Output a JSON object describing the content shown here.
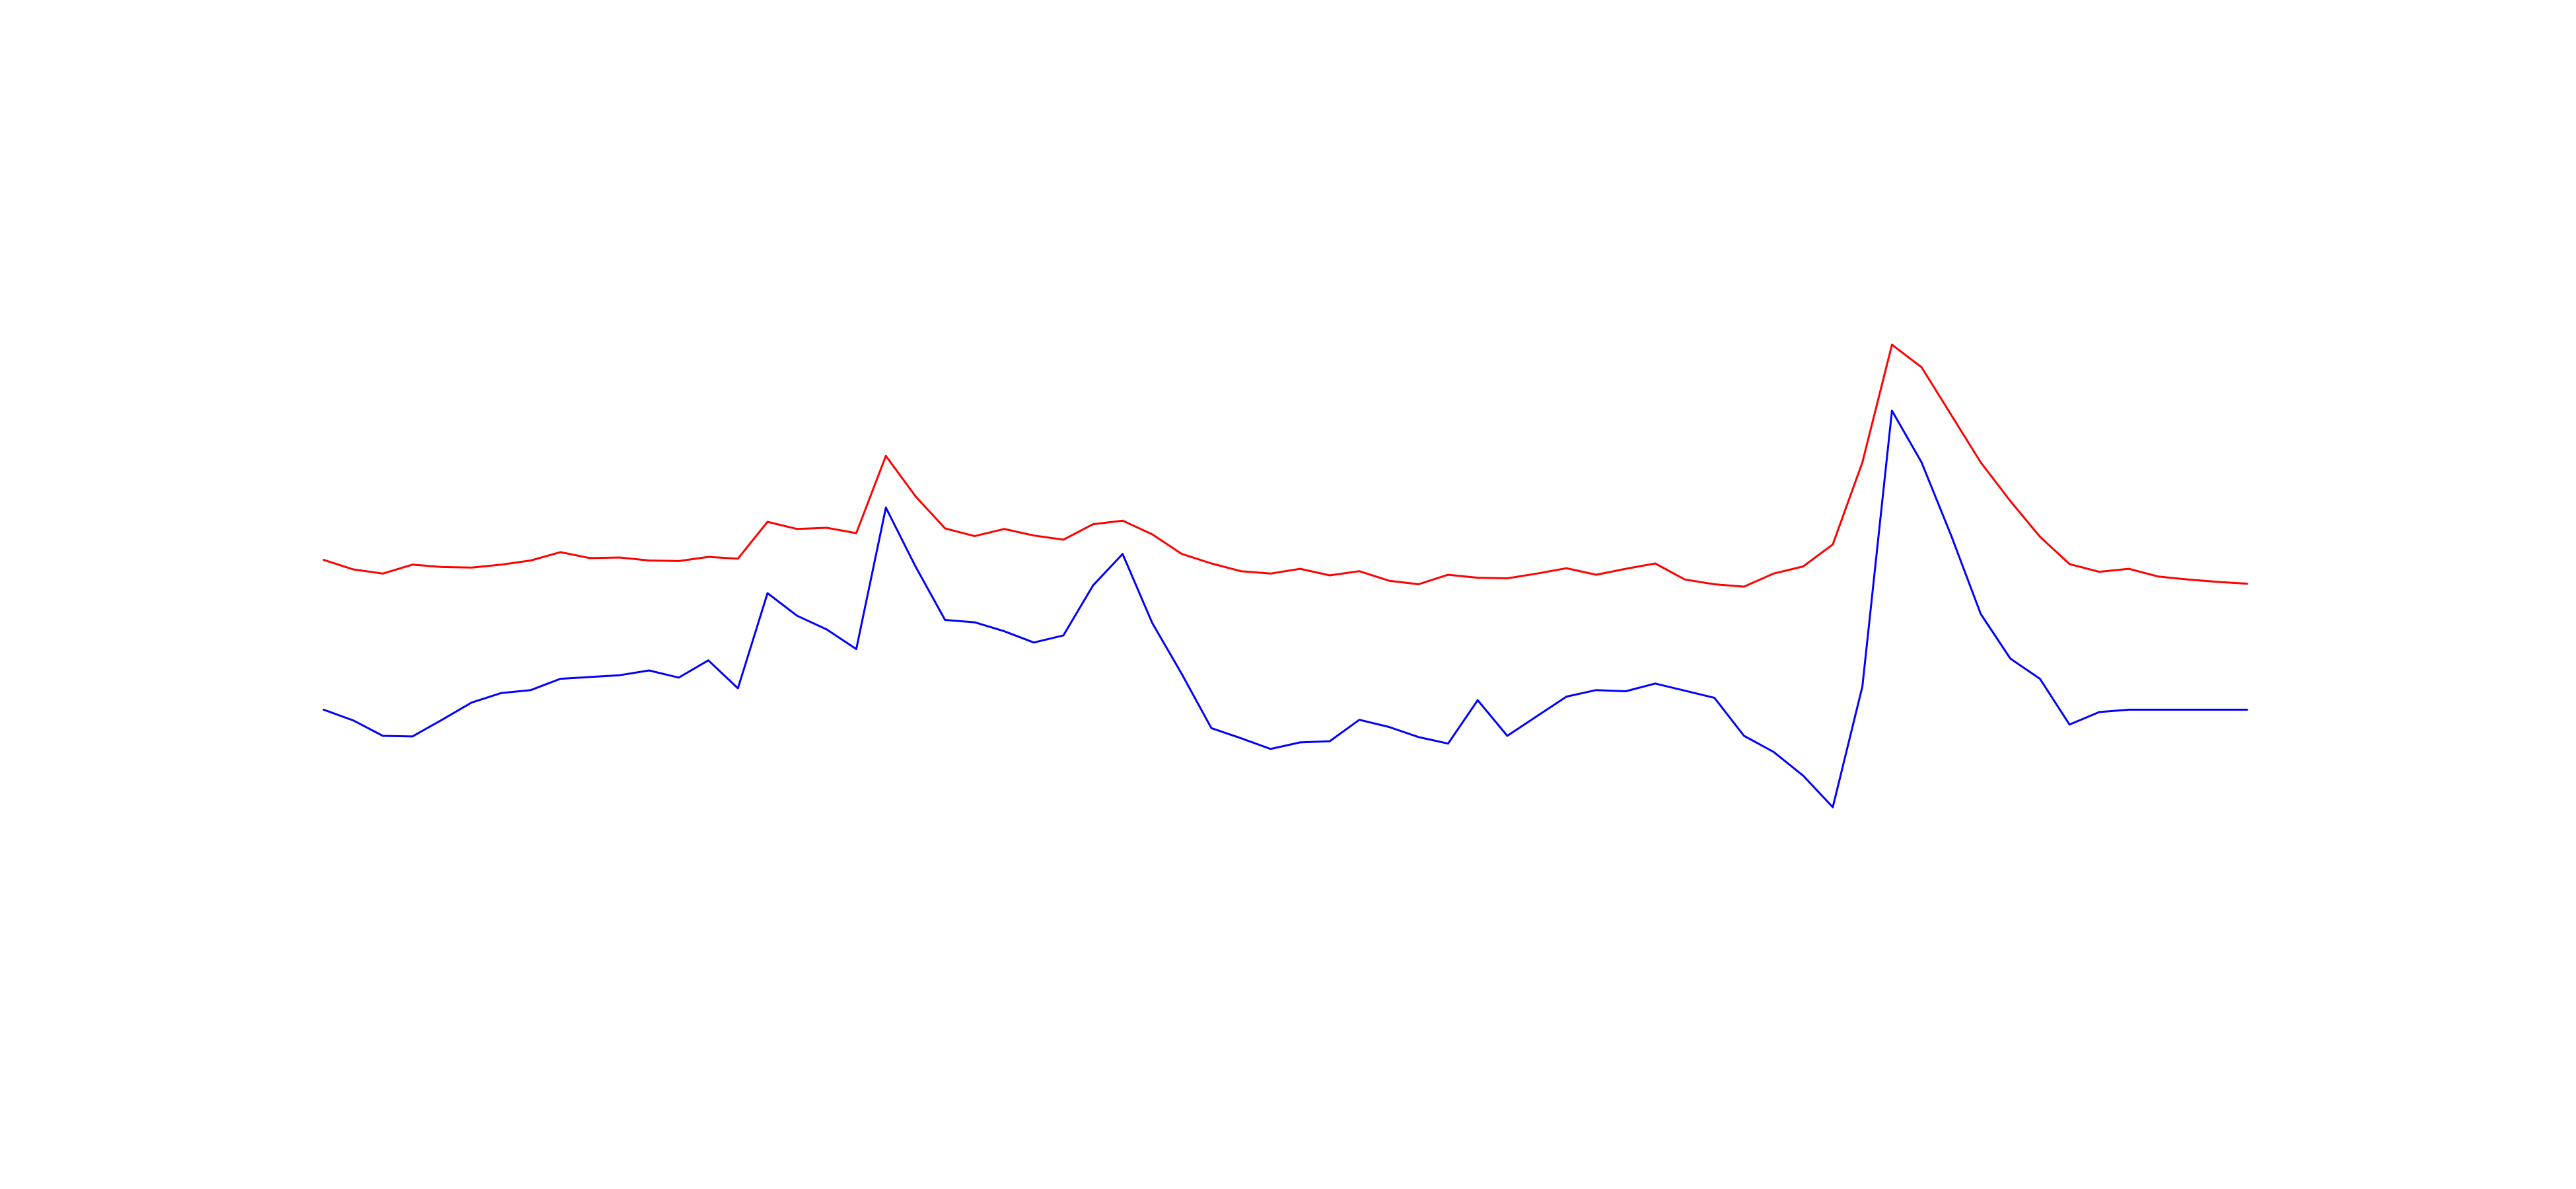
{
  "colors": {
    "background": "#ffffff"
  },
  "chart_data": {
    "type": "line",
    "title": "",
    "xlabel": "",
    "ylabel": "",
    "grid": false,
    "legend": "none",
    "axes_visible": false,
    "xlim": [
      0,
      150
    ],
    "ylim": [
      0,
      100
    ],
    "x": [
      0,
      2,
      4,
      6,
      8,
      10,
      12,
      14,
      16,
      18,
      20,
      22,
      24,
      26,
      28,
      30,
      32,
      34,
      36,
      38,
      40,
      42,
      44,
      46,
      48,
      50,
      52,
      54,
      56,
      58,
      60,
      62,
      64,
      66,
      68,
      70,
      72,
      74,
      76,
      78,
      80,
      82,
      84,
      86,
      88,
      90,
      92,
      94,
      96,
      98,
      100,
      102,
      104,
      106,
      108,
      110,
      112,
      114,
      116,
      118,
      120,
      122,
      124,
      126,
      128,
      130,
      132,
      134,
      136,
      138,
      140,
      142,
      144,
      146,
      148,
      150
    ],
    "series": [
      {
        "color": "#ff0000",
        "values": [
          63.6,
          62.0,
          61.3,
          62.8,
          62.4,
          62.3,
          62.8,
          63.5,
          64.9,
          63.9,
          64.0,
          63.5,
          63.4,
          64.1,
          63.8,
          70.0,
          68.8,
          69.0,
          68.1,
          81.1,
          74.3,
          68.9,
          67.6,
          68.8,
          67.7,
          67.0,
          69.6,
          70.2,
          67.9,
          64.6,
          63.0,
          61.7,
          61.3,
          62.1,
          61.0,
          61.7,
          60.1,
          59.5,
          61.1,
          60.6,
          60.5,
          61.3,
          62.2,
          61.1,
          62.1,
          63.0,
          60.3,
          59.5,
          59.1,
          61.3,
          62.5,
          66.2,
          80.0,
          99.8,
          96.0,
          88.0,
          80.0,
          73.5,
          67.5,
          62.9,
          61.6,
          62.1,
          60.8,
          60.3,
          59.9,
          59.6,
          59.4,
          59.2,
          59.0,
          58.8,
          58.6,
          58.6,
          58.6,
          58.6,
          58.6,
          58.6
        ],
        "drawn_points": 66
      },
      {
        "color": "#0000ff",
        "values": [
          38.4,
          36.6,
          34.0,
          33.9,
          36.7,
          39.6,
          41.2,
          41.7,
          43.6,
          43.9,
          44.2,
          45.0,
          43.8,
          46.7,
          42.0,
          58.0,
          54.2,
          51.9,
          48.6,
          72.4,
          62.5,
          53.5,
          53.1,
          51.6,
          49.7,
          50.9,
          59.3,
          64.6,
          53.0,
          44.4,
          35.3,
          33.6,
          31.8,
          32.9,
          33.1,
          36.7,
          35.5,
          33.8,
          32.7,
          40.0,
          34.0,
          37.3,
          40.6,
          41.7,
          41.5,
          42.8,
          41.6,
          40.4,
          34.0,
          31.3,
          27.3,
          22.0,
          42.3,
          88.7,
          80.0,
          67.7,
          54.5,
          47.0,
          43.6,
          35.9,
          38.0,
          38.4,
          38.4,
          38.4,
          38.4,
          38.4,
          38.4,
          38.4,
          38.4,
          38.4,
          38.4,
          38.4,
          38.4,
          38.4,
          38.4,
          38.4
        ],
        "drawn_points": 66
      }
    ]
  }
}
